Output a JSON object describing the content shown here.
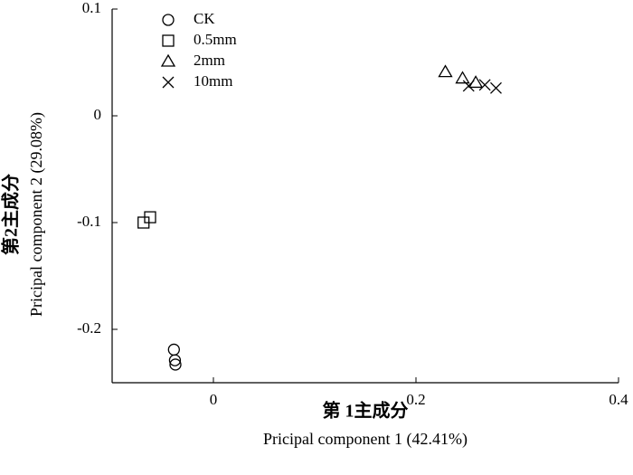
{
  "chart_data": {
    "type": "scatter",
    "xlabel": [
      "第 1主成分",
      "Pricipal component 1 (42.41%)"
    ],
    "ylabel": [
      "第2主成分",
      "Pricipal component 2 (29.08%)"
    ],
    "xlim": [
      -0.1,
      0.4
    ],
    "xticks": [
      0,
      0.2,
      0.4
    ],
    "ylim": [
      -0.25,
      0.1
    ],
    "yticks": [
      0.1,
      0,
      -0.1,
      -0.2
    ],
    "legend": "upper-left",
    "series": [
      {
        "name": "CK",
        "color": "#000000",
        "marker": "circle",
        "x": [
          -0.039,
          -0.038,
          -0.0375
        ],
        "values": [
          -0.219,
          -0.229,
          -0.233
        ]
      },
      {
        "name": "0.5mm",
        "color": "#000000",
        "marker": "square",
        "x": [
          -0.069,
          -0.0625
        ],
        "values": [
          -0.1,
          -0.095
        ]
      },
      {
        "name": "2mm",
        "color": "#000000",
        "marker": "triangle",
        "x": [
          0.229,
          0.246,
          0.259
        ],
        "values": [
          0.041,
          0.035,
          0.031
        ]
      },
      {
        "name": "10mm",
        "color": "#000000",
        "marker": "x",
        "x": [
          0.252,
          0.268,
          0.279
        ],
        "values": [
          0.028,
          0.029,
          0.026
        ]
      }
    ]
  }
}
